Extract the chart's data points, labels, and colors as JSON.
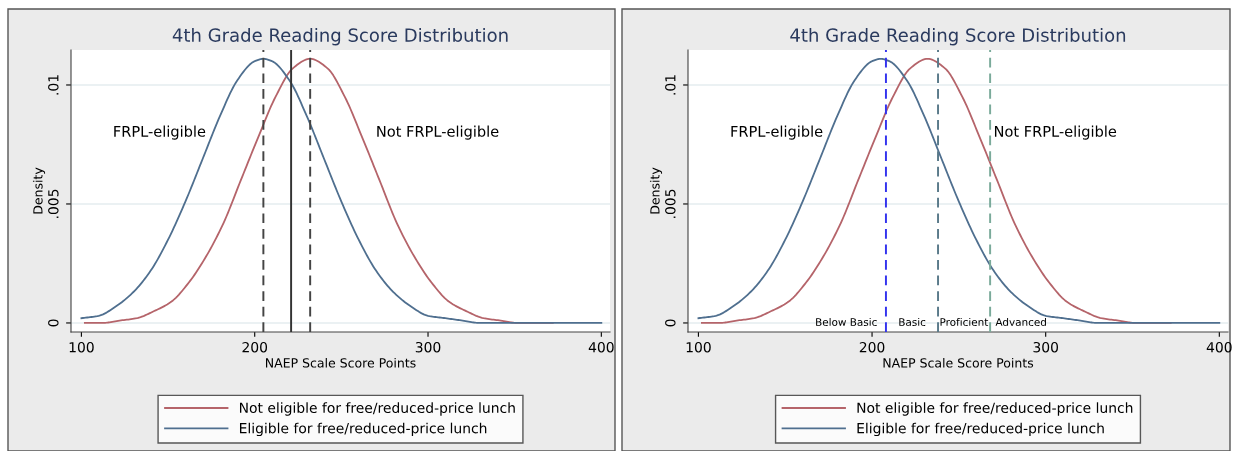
{
  "chart_data": [
    {
      "type": "line",
      "title": "4th Grade Reading Score Distribution",
      "xlabel": "NAEP Scale Score Points",
      "ylabel": "Density",
      "xlim": [
        94,
        405
      ],
      "xticks": [
        100,
        200,
        300,
        400
      ],
      "ylim": [
        -0.00038,
        0.01147
      ],
      "yticks": [
        {
          "value": 0,
          "label": "0"
        },
        {
          "value": 0.005,
          "label": ".005"
        },
        {
          "value": 0.01,
          "label": ".01"
        }
      ],
      "grid": "y",
      "legend": "bottom",
      "marker": "none",
      "line_style": "solid",
      "series": [
        {
          "name": "Not eligible for free/reduced-price lunch",
          "color": "#b5646a",
          "x": [
            102,
            112,
            122,
            132,
            142,
            152,
            162,
            172,
            182,
            192,
            202,
            212,
            222,
            232,
            242,
            252,
            262,
            272,
            282,
            292,
            302,
            312,
            322,
            332,
            342,
            352,
            362,
            372
          ],
          "values": [
            0,
            0,
            0.0001,
            0.0002,
            0.0005,
            0.0009,
            0.0017,
            0.0028,
            0.0042,
            0.006,
            0.0078,
            0.0095,
            0.0107,
            0.0111,
            0.0107,
            0.0095,
            0.0078,
            0.006,
            0.0042,
            0.0028,
            0.0017,
            0.0009,
            0.0005,
            0.0002,
            0.0001,
            0,
            0,
            0
          ]
        },
        {
          "name": "Eligible for free/reduced-price lunch",
          "color": "#4f6f8f",
          "x": [
            100,
            110,
            120,
            130,
            140,
            150,
            160,
            170,
            180,
            190,
            200,
            205,
            210,
            220,
            230,
            240,
            250,
            260,
            270,
            280,
            290,
            300,
            310,
            320,
            330,
            340,
            350,
            360,
            370,
            380,
            390,
            400
          ],
          "values": [
            0.0002,
            0.0003,
            0.0007,
            0.0013,
            0.0022,
            0.0035,
            0.0051,
            0.0069,
            0.0087,
            0.0102,
            0.011,
            0.0111,
            0.011,
            0.0102,
            0.0087,
            0.0069,
            0.0051,
            0.0035,
            0.0022,
            0.0013,
            0.0007,
            0.0003,
            0.0002,
            0.0001,
            0,
            0,
            0,
            0,
            0,
            0,
            0,
            0
          ]
        }
      ],
      "ref_lines": [
        {
          "axis": "x",
          "value": 205,
          "color": "#444444",
          "line_style": "dashed"
        },
        {
          "axis": "x",
          "value": 232,
          "color": "#444444",
          "line_style": "dashed"
        },
        {
          "axis": "x",
          "value": 221,
          "color": "#333333",
          "line_style": "solid"
        }
      ],
      "annotations": [
        "FRPL-eligible",
        "Not FRPL-eligible"
      ]
    },
    {
      "type": "line",
      "title": "4th Grade Reading Score Distribution",
      "xlabel": "NAEP Scale Score Points",
      "ylabel": "Density",
      "xlim": [
        94,
        405
      ],
      "xticks": [
        100,
        200,
        300,
        400
      ],
      "ylim": [
        -0.00038,
        0.01147
      ],
      "yticks": [
        {
          "value": 0,
          "label": "0"
        },
        {
          "value": 0.005,
          "label": ".005"
        },
        {
          "value": 0.01,
          "label": ".01"
        }
      ],
      "grid": "y",
      "legend": "bottom",
      "marker": "none",
      "line_style": "solid",
      "series": [
        {
          "name": "Not eligible for free/reduced-price lunch",
          "color": "#b5646a",
          "x": [
            102,
            112,
            122,
            132,
            142,
            152,
            162,
            172,
            182,
            192,
            202,
            212,
            222,
            232,
            242,
            252,
            262,
            272,
            282,
            292,
            302,
            312,
            322,
            332,
            342,
            352,
            362,
            372
          ],
          "values": [
            0,
            0,
            0.0001,
            0.0002,
            0.0005,
            0.0009,
            0.0017,
            0.0028,
            0.0042,
            0.006,
            0.0078,
            0.0095,
            0.0107,
            0.0111,
            0.0107,
            0.0095,
            0.0078,
            0.006,
            0.0042,
            0.0028,
            0.0017,
            0.0009,
            0.0005,
            0.0002,
            0.0001,
            0,
            0,
            0
          ]
        },
        {
          "name": "Eligible for free/reduced-price lunch",
          "color": "#4f6f8f",
          "x": [
            100,
            110,
            120,
            130,
            140,
            150,
            160,
            170,
            180,
            190,
            200,
            205,
            210,
            220,
            230,
            240,
            250,
            260,
            270,
            280,
            290,
            300,
            310,
            320,
            330,
            340,
            350,
            360,
            370,
            380,
            390,
            400
          ],
          "values": [
            0.0002,
            0.0003,
            0.0007,
            0.0013,
            0.0022,
            0.0035,
            0.0051,
            0.0069,
            0.0087,
            0.0102,
            0.011,
            0.0111,
            0.011,
            0.0102,
            0.0087,
            0.0069,
            0.0051,
            0.0035,
            0.0022,
            0.0013,
            0.0007,
            0.0003,
            0.0002,
            0.0001,
            0,
            0,
            0,
            0,
            0,
            0,
            0,
            0
          ]
        }
      ],
      "ref_lines": [
        {
          "axis": "x",
          "value": 208,
          "color": "#3333ee",
          "line_style": "dashed"
        },
        {
          "axis": "x",
          "value": 238,
          "color": "#5a7a8a",
          "line_style": "dashed"
        },
        {
          "axis": "x",
          "value": 268,
          "color": "#7aaa9a",
          "line_style": "dashed"
        }
      ],
      "annotations": [
        "FRPL-eligible",
        "Not FRPL-eligible",
        "Below Basic",
        "Basic",
        "Proficient",
        "Advanced"
      ]
    }
  ]
}
